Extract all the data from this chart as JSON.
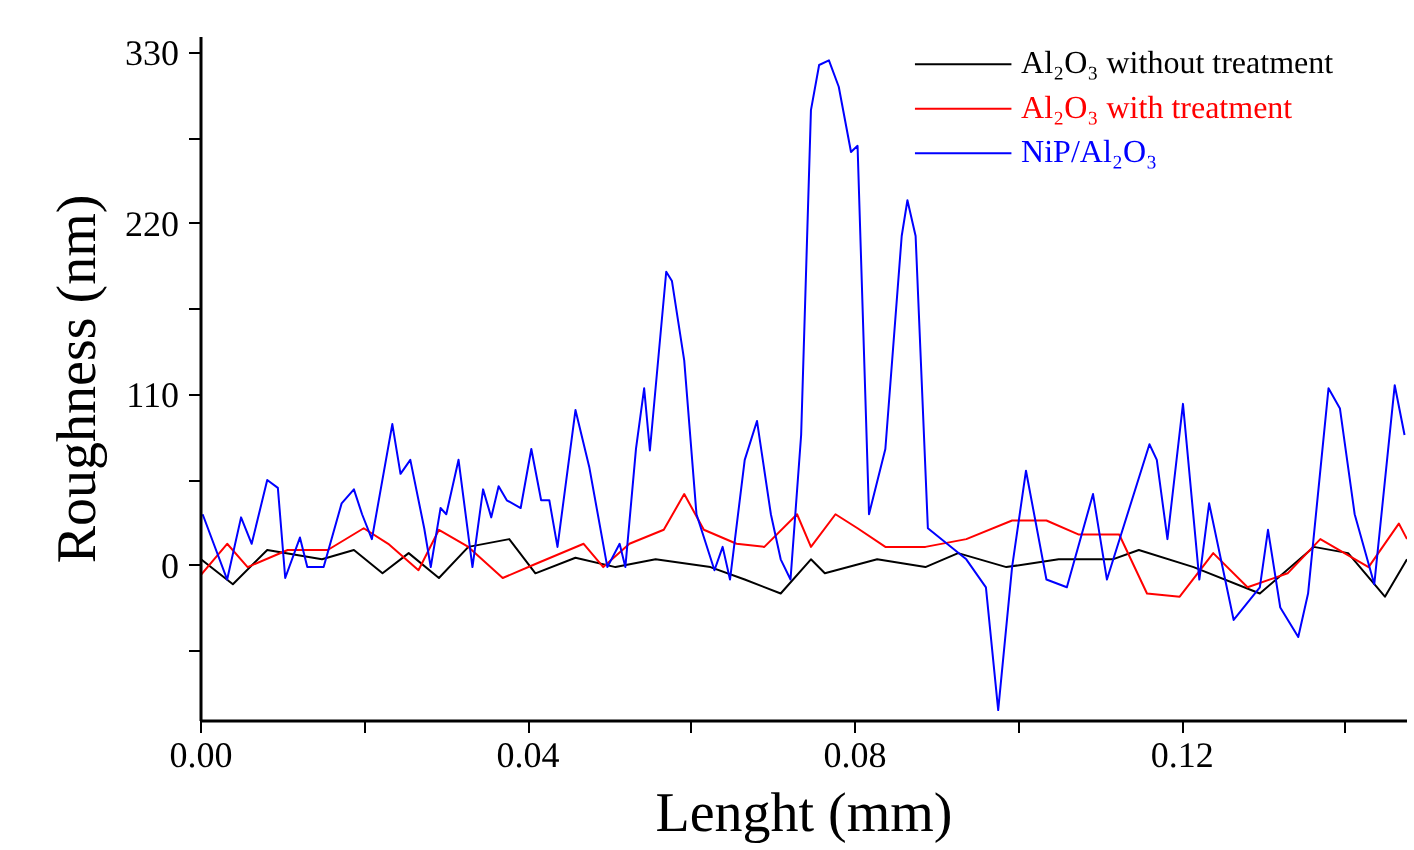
{
  "chart_data": {
    "type": "line",
    "xlabel": "Lenght (mm)",
    "ylabel": "Roughness (nm)",
    "xlim": [
      0,
      0.1475
    ],
    "ylim": [
      -100,
      340
    ],
    "xticks": [
      {
        "value": 0,
        "label": "0.00"
      },
      {
        "value": 0.02,
        "label": null
      },
      {
        "value": 0.04,
        "label": "0.04"
      },
      {
        "value": 0.06,
        "label": null
      },
      {
        "value": 0.08,
        "label": "0.08"
      },
      {
        "value": 0.1,
        "label": null
      },
      {
        "value": 0.12,
        "label": "0.12"
      },
      {
        "value": 0.14,
        "label": null
      }
    ],
    "yticks": [
      {
        "value": -55,
        "label": null
      },
      0,
      {
        "value": 55,
        "label": null
      },
      110,
      {
        "value": 165,
        "label": null
      },
      220,
      {
        "value": 275,
        "label": null
      },
      330
    ],
    "grid": false,
    "legend": "top right",
    "line_style": "solid",
    "marker": "none",
    "series": [
      {
        "name": "Al₂O₃ without treatment",
        "color": "#000000",
        "x": [
          0,
          0.0039,
          0.0081,
          0.0148,
          0.0187,
          0.0222,
          0.0254,
          0.0291,
          0.0327,
          0.0377,
          0.0409,
          0.0458,
          0.0507,
          0.0556,
          0.0623,
          0.0665,
          0.0709,
          0.0746,
          0.0763,
          0.0827,
          0.0886,
          0.0926,
          0.0985,
          0.1049,
          0.1115,
          0.1147,
          0.1214,
          0.1295,
          0.1361,
          0.1403,
          0.1448,
          0.1475
        ],
        "values": [
          4,
          -12,
          10,
          4,
          10,
          -5,
          8,
          -8,
          12,
          17,
          -5,
          5,
          -1,
          4,
          -1,
          -9,
          -18,
          4,
          -5,
          4,
          -1,
          8,
          -1,
          4,
          4,
          10,
          -1,
          -18,
          12,
          8,
          -20,
          4
        ]
      },
      {
        "name": "Al₂O₃ with treatment",
        "color": "#ff0000",
        "x": [
          0,
          0.0032,
          0.0057,
          0.0106,
          0.0155,
          0.0199,
          0.0229,
          0.0266,
          0.0291,
          0.0327,
          0.0369,
          0.0409,
          0.0468,
          0.0492,
          0.0524,
          0.0566,
          0.0591,
          0.0615,
          0.0655,
          0.0689,
          0.0729,
          0.0746,
          0.0776,
          0.0803,
          0.0837,
          0.0886,
          0.0936,
          0.0992,
          0.1034,
          0.1073,
          0.1123,
          0.1157,
          0.1197,
          0.1238,
          0.128,
          0.1329,
          0.1369,
          0.1428,
          0.1465,
          0.1475
        ],
        "values": [
          -6,
          14,
          -1,
          10,
          10,
          24,
          14,
          -3,
          23,
          12,
          -8,
          1,
          14,
          -1,
          14,
          23,
          46,
          23,
          14,
          12,
          33,
          12,
          33,
          24,
          12,
          12,
          17,
          29,
          29,
          20,
          20,
          -18,
          -20,
          8,
          -14,
          -5,
          17,
          -1,
          27,
          17
        ]
      },
      {
        "name": "NiP/Al₂O₃",
        "color": "#0000ff",
        "x": [
          0.0002,
          0.0032,
          0.0049,
          0.0062,
          0.0081,
          0.0094,
          0.0103,
          0.0121,
          0.013,
          0.015,
          0.0172,
          0.0187,
          0.0197,
          0.0209,
          0.0234,
          0.0244,
          0.0256,
          0.0273,
          0.0281,
          0.0293,
          0.03,
          0.0315,
          0.0332,
          0.0345,
          0.0355,
          0.0364,
          0.0374,
          0.0391,
          0.0404,
          0.0416,
          0.0426,
          0.0436,
          0.0458,
          0.0475,
          0.0497,
          0.0512,
          0.0519,
          0.0532,
          0.0542,
          0.0549,
          0.0569,
          0.0576,
          0.0591,
          0.0606,
          0.0628,
          0.0638,
          0.0647,
          0.0665,
          0.068,
          0.0697,
          0.0709,
          0.0721,
          0.0734,
          0.0746,
          0.0756,
          0.0768,
          0.078,
          0.0795,
          0.0803,
          0.0817,
          0.0837,
          0.0857,
          0.0864,
          0.0874,
          0.0889,
          0.0936,
          0.096,
          0.0975,
          0.0992,
          0.1009,
          0.1034,
          0.1059,
          0.1091,
          0.1108,
          0.116,
          0.1169,
          0.1182,
          0.1201,
          0.1221,
          0.1233,
          0.1263,
          0.1295,
          0.1305,
          0.132,
          0.1342,
          0.1354,
          0.1379,
          0.1393,
          0.1411,
          0.1435,
          0.146,
          0.1472
        ],
        "values": [
          33,
          -9,
          31,
          14,
          55,
          50,
          -8,
          18,
          -1,
          -1,
          40,
          49,
          33,
          17,
          91,
          59,
          68,
          24,
          -1,
          37,
          33,
          68,
          -1,
          49,
          31,
          51,
          42,
          37,
          75,
          42,
          42,
          12,
          100,
          63,
          -1,
          14,
          -1,
          75,
          114,
          74,
          189,
          183,
          132,
          33,
          -3,
          12,
          -9,
          68,
          93,
          33,
          4,
          -9,
          84,
          293,
          322,
          325,
          308,
          266,
          270,
          33,
          75,
          212,
          235,
          212,
          24,
          4,
          -14,
          -93,
          -1,
          61,
          -9,
          -14,
          46,
          -9,
          78,
          68,
          17,
          104,
          -9,
          40,
          -35,
          -14,
          23,
          -27,
          -46,
          -18,
          114,
          101,
          33,
          -12,
          116,
          84
        ]
      }
    ]
  }
}
